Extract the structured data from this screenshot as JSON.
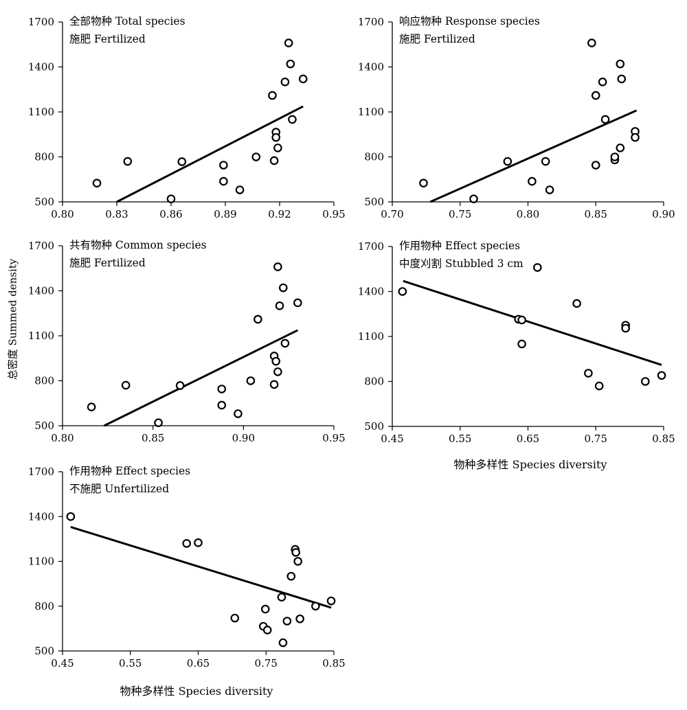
{
  "figure": {
    "ylabel": "总密度  Summed density",
    "xlabel_right": "物种多样性  Species diversity",
    "xlabel_bottom": "物种多样性  Species diversity"
  },
  "chart_data": [
    {
      "type": "scatter",
      "title": "全部物种  Total species",
      "subtitle": "施肥 Fertilized",
      "xlim": [
        0.8,
        0.95
      ],
      "ylim": [
        500,
        1700
      ],
      "xticks": [
        "0.80",
        "0.83",
        "0.86",
        "0.89",
        "0.92",
        "0.95"
      ],
      "yticks": [
        "500",
        "800",
        "1100",
        "1400",
        "1700"
      ],
      "points": [
        [
          0.819,
          625
        ],
        [
          0.836,
          770
        ],
        [
          0.86,
          520
        ],
        [
          0.866,
          768
        ],
        [
          0.889,
          745
        ],
        [
          0.889,
          637
        ],
        [
          0.898,
          580
        ],
        [
          0.907,
          800
        ],
        [
          0.916,
          1210
        ],
        [
          0.917,
          775
        ],
        [
          0.918,
          965
        ],
        [
          0.918,
          930
        ],
        [
          0.919,
          860
        ],
        [
          0.923,
          1300
        ],
        [
          0.925,
          1560
        ],
        [
          0.926,
          1420
        ],
        [
          0.927,
          1050
        ],
        [
          0.933,
          1320
        ]
      ],
      "fit": [
        [
          0.83,
          500
        ],
        [
          0.933,
          1137
        ]
      ]
    },
    {
      "type": "scatter",
      "title": "响应物种  Response species",
      "subtitle": "施肥 Fertilized",
      "xlim": [
        0.7,
        0.9
      ],
      "ylim": [
        500,
        1700
      ],
      "xticks": [
        "0.70",
        "0.75",
        "0.80",
        "0.85",
        "0.90"
      ],
      "yticks": [
        "500",
        "800",
        "1100",
        "1400",
        "1700"
      ],
      "points": [
        [
          0.723,
          625
        ],
        [
          0.76,
          520
        ],
        [
          0.785,
          770
        ],
        [
          0.803,
          637
        ],
        [
          0.813,
          770
        ],
        [
          0.816,
          580
        ],
        [
          0.847,
          1560
        ],
        [
          0.85,
          745
        ],
        [
          0.85,
          1210
        ],
        [
          0.855,
          1300
        ],
        [
          0.857,
          1050
        ],
        [
          0.864,
          780
        ],
        [
          0.864,
          800
        ],
        [
          0.868,
          1420
        ],
        [
          0.868,
          860
        ],
        [
          0.869,
          1320
        ],
        [
          0.879,
          970
        ],
        [
          0.879,
          930
        ]
      ],
      "fit": [
        [
          0.728,
          500
        ],
        [
          0.88,
          1110
        ]
      ]
    },
    {
      "type": "scatter",
      "title": "共有物种  Common species",
      "subtitle": "施肥 Fertilized",
      "xlim": [
        0.8,
        0.95
      ],
      "ylim": [
        500,
        1700
      ],
      "xticks": [
        "0.80",
        "0.85",
        "0.90",
        "0.95"
      ],
      "yticks": [
        "500",
        "800",
        "1100",
        "1400",
        "1700"
      ],
      "points": [
        [
          0.816,
          625
        ],
        [
          0.835,
          770
        ],
        [
          0.853,
          520
        ],
        [
          0.865,
          768
        ],
        [
          0.888,
          745
        ],
        [
          0.888,
          637
        ],
        [
          0.897,
          580
        ],
        [
          0.904,
          800
        ],
        [
          0.908,
          1210
        ],
        [
          0.917,
          775
        ],
        [
          0.917,
          965
        ],
        [
          0.918,
          930
        ],
        [
          0.919,
          860
        ],
        [
          0.919,
          1560
        ],
        [
          0.92,
          1300
        ],
        [
          0.922,
          1420
        ],
        [
          0.923,
          1050
        ],
        [
          0.93,
          1320
        ]
      ],
      "fit": [
        [
          0.823,
          500
        ],
        [
          0.93,
          1137
        ]
      ]
    },
    {
      "type": "scatter",
      "title": "作用物种  Effect species",
      "subtitle": "中度刈割 Stubbled 3 cm",
      "xlim": [
        0.45,
        0.85
      ],
      "ylim": [
        500,
        1700
      ],
      "xticks": [
        "0.45",
        "0.55",
        "0.65",
        "0.75",
        "0.85"
      ],
      "yticks": [
        "500",
        "800",
        "1100",
        "1400",
        "1700"
      ],
      "points": [
        [
          0.465,
          1400
        ],
        [
          0.636,
          1215
        ],
        [
          0.641,
          1210
        ],
        [
          0.641,
          1050
        ],
        [
          0.664,
          1560
        ],
        [
          0.722,
          1320
        ],
        [
          0.739,
          855
        ],
        [
          0.755,
          770
        ],
        [
          0.794,
          1175
        ],
        [
          0.794,
          1155
        ],
        [
          0.823,
          800
        ],
        [
          0.847,
          840
        ]
      ],
      "fit": [
        [
          0.466,
          1470
        ],
        [
          0.847,
          910
        ]
      ]
    },
    {
      "type": "scatter",
      "title": "作用物种  Effect species",
      "subtitle": "不施肥 Unfertilized",
      "xlim": [
        0.45,
        0.85
      ],
      "ylim": [
        500,
        1700
      ],
      "xticks": [
        "0.45",
        "0.55",
        "0.65",
        "0.75",
        "0.85"
      ],
      "yticks": [
        "500",
        "800",
        "1100",
        "1400",
        "1700"
      ],
      "points": [
        [
          0.462,
          1400
        ],
        [
          0.633,
          1220
        ],
        [
          0.65,
          1225
        ],
        [
          0.704,
          720
        ],
        [
          0.746,
          665
        ],
        [
          0.749,
          780
        ],
        [
          0.752,
          640
        ],
        [
          0.773,
          860
        ],
        [
          0.775,
          555
        ],
        [
          0.781,
          700
        ],
        [
          0.787,
          1000
        ],
        [
          0.793,
          1180
        ],
        [
          0.794,
          1160
        ],
        [
          0.797,
          1100
        ],
        [
          0.8,
          715
        ],
        [
          0.823,
          800
        ],
        [
          0.846,
          835
        ]
      ],
      "fit": [
        [
          0.462,
          1330
        ],
        [
          0.846,
          790
        ]
      ]
    }
  ]
}
